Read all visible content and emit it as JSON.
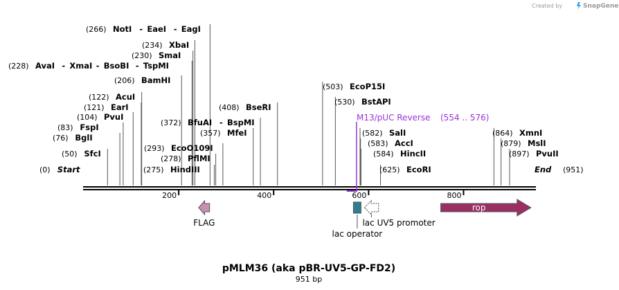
{
  "credit": {
    "text": "Created by",
    "brand": "SnapGene"
  },
  "map": {
    "title": "pMLM36 (aka pBR-UV5-GP-FD2)",
    "length_label": "951 bp",
    "length_bp": 951
  },
  "ruler": {
    "ticks": [
      200,
      400,
      600,
      800
    ]
  },
  "sites": [
    {
      "pos": 0,
      "pos_label": "(0)",
      "names": [
        "Start"
      ],
      "italic": true
    },
    {
      "pos": 50,
      "pos_label": "(50)",
      "names": [
        "SfcI"
      ]
    },
    {
      "pos": 76,
      "pos_label": "(76)",
      "names": [
        "BglI"
      ]
    },
    {
      "pos": 83,
      "pos_label": "(83)",
      "names": [
        "FspI"
      ]
    },
    {
      "pos": 104,
      "pos_label": "(104)",
      "names": [
        "PvuI"
      ]
    },
    {
      "pos": 121,
      "pos_label": "(121)",
      "names": [
        "EarI"
      ]
    },
    {
      "pos": 122,
      "pos_label": "(122)",
      "names": [
        "AcuI"
      ]
    },
    {
      "pos": 206,
      "pos_label": "(206)",
      "names": [
        "BamHI"
      ]
    },
    {
      "pos": 228,
      "pos_label": "(228)",
      "names": [
        "AvaI",
        "XmaI",
        "BsoBI",
        "TspMI"
      ]
    },
    {
      "pos": 230,
      "pos_label": "(230)",
      "names": [
        "SmaI"
      ]
    },
    {
      "pos": 234,
      "pos_label": "(234)",
      "names": [
        "XbaI"
      ]
    },
    {
      "pos": 266,
      "pos_label": "(266)",
      "names": [
        "NotI",
        "EaeI",
        "EagI"
      ]
    },
    {
      "pos": 275,
      "pos_label": "(275)",
      "names": [
        "HindIII"
      ]
    },
    {
      "pos": 278,
      "pos_label": "(278)",
      "names": [
        "PflMI"
      ]
    },
    {
      "pos": 293,
      "pos_label": "(293)",
      "names": [
        "EcoO109I"
      ]
    },
    {
      "pos": 372,
      "pos_label": "(372)",
      "names": [
        "BfuAI",
        "BspMI"
      ]
    },
    {
      "pos": 357,
      "pos_label": "(357)",
      "names": [
        "MfeI"
      ]
    },
    {
      "pos": 408,
      "pos_label": "(408)",
      "names": [
        "BseRI"
      ]
    },
    {
      "pos": 503,
      "pos_label": "(503)",
      "names": [
        "EcoP15I"
      ]
    },
    {
      "pos": 530,
      "pos_label": "(530)",
      "names": [
        "BstAPI"
      ]
    },
    {
      "pos": 582,
      "pos_label": "(582)",
      "names": [
        "SalI"
      ]
    },
    {
      "pos": 583,
      "pos_label": "(583)",
      "names": [
        "AccI"
      ]
    },
    {
      "pos": 584,
      "pos_label": "(584)",
      "names": [
        "HincII"
      ]
    },
    {
      "pos": 625,
      "pos_label": "(625)",
      "names": [
        "EcoRI"
      ]
    },
    {
      "pos": 864,
      "pos_label": "(864)",
      "names": [
        "XmnI"
      ]
    },
    {
      "pos": 879,
      "pos_label": "(879)",
      "names": [
        "MslI"
      ]
    },
    {
      "pos": 897,
      "pos_label": "(897)",
      "names": [
        "PvuII"
      ]
    },
    {
      "pos": 951,
      "pos_label": "(951)",
      "names": [
        "End"
      ],
      "italic": true
    }
  ],
  "primer": {
    "name": "M13/pUC Reverse",
    "range_label": "(554 .. 576)",
    "start": 554,
    "end": 576,
    "color": "#9b30d9"
  },
  "features": [
    {
      "name": "FLAG",
      "start": 242,
      "end": 265,
      "direction": "reverse",
      "color": "#c98fb0"
    },
    {
      "name": "lac operator",
      "start": 568,
      "end": 584,
      "direction": "none",
      "color": "#2e7f8f"
    },
    {
      "name": "lac UV5 promoter",
      "start": 591,
      "end": 621,
      "direction": "reverse",
      "color": "#ffffff"
    },
    {
      "name": "rop",
      "start": 752,
      "end": 942,
      "direction": "forward",
      "color": "#9a2f63"
    }
  ]
}
